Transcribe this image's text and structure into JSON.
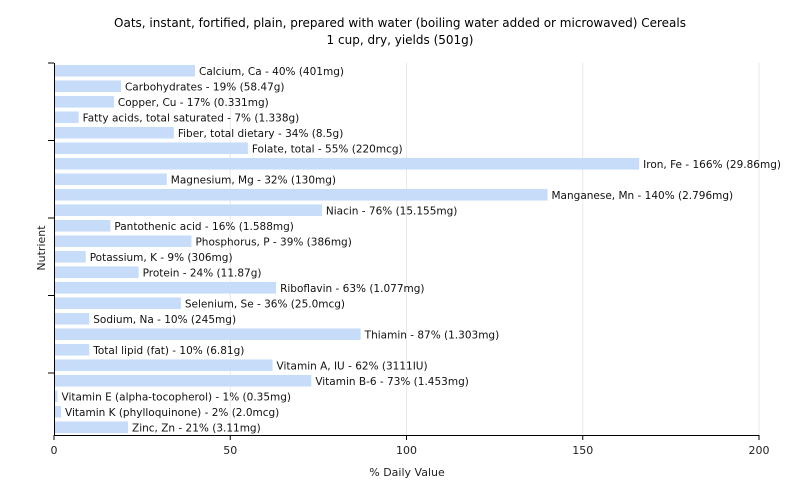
{
  "chart_data": {
    "type": "bar",
    "orientation": "horizontal",
    "title": "Oats, instant, fortified, plain, prepared with water (boiling water added or microwaved) Cereals",
    "subtitle": "1 cup, dry, yields (501g)",
    "xlabel": "% Daily Value",
    "ylabel": "Nutrient",
    "xlim": [
      0,
      200
    ],
    "xticks": [
      0,
      50,
      100,
      150,
      200
    ],
    "grid": "vertical",
    "bar_color": "#c6dcf8",
    "categories": [
      "Calcium, Ca",
      "Carbohydrates",
      "Copper, Cu",
      "Fatty acids, total saturated",
      "Fiber, total dietary",
      "Folate, total",
      "Iron, Fe",
      "Magnesium, Mg",
      "Manganese, Mn",
      "Niacin",
      "Pantothenic acid",
      "Phosphorus, P",
      "Potassium, K",
      "Protein",
      "Riboflavin",
      "Selenium, Se",
      "Sodium, Na",
      "Thiamin",
      "Total lipid (fat)",
      "Vitamin A, IU",
      "Vitamin B-6",
      "Vitamin E (alpha-tocopherol)",
      "Vitamin K (phylloquinone)",
      "Zinc, Zn"
    ],
    "values": [
      40,
      19,
      17,
      7,
      34,
      55,
      166,
      32,
      140,
      76,
      16,
      39,
      9,
      24,
      63,
      36,
      10,
      87,
      10,
      62,
      73,
      1,
      2,
      21
    ],
    "labels": [
      "Calcium, Ca - 40% (401mg)",
      "Carbohydrates - 19% (58.47g)",
      "Copper, Cu - 17% (0.331mg)",
      "Fatty acids, total saturated - 7% (1.338g)",
      "Fiber, total dietary - 34% (8.5g)",
      "Folate, total - 55% (220mcg)",
      "Iron, Fe - 166% (29.86mg)",
      "Magnesium, Mg - 32% (130mg)",
      "Manganese, Mn - 140% (2.796mg)",
      "Niacin - 76% (15.155mg)",
      "Pantothenic acid - 16% (1.588mg)",
      "Phosphorus, P - 39% (386mg)",
      "Potassium, K - 9% (306mg)",
      "Protein - 24% (11.87g)",
      "Riboflavin - 63% (1.077mg)",
      "Selenium, Se - 36% (25.0mcg)",
      "Sodium, Na - 10% (245mg)",
      "Thiamin - 87% (1.303mg)",
      "Total lipid (fat) - 10% (6.81g)",
      "Vitamin A, IU - 62% (3111IU)",
      "Vitamin B-6 - 73% (1.453mg)",
      "Vitamin E (alpha-tocopherol) - 1% (0.35mg)",
      "Vitamin K (phylloquinone) - 2% (2.0mcg)",
      "Zinc, Zn - 21% (3.11mg)"
    ]
  }
}
